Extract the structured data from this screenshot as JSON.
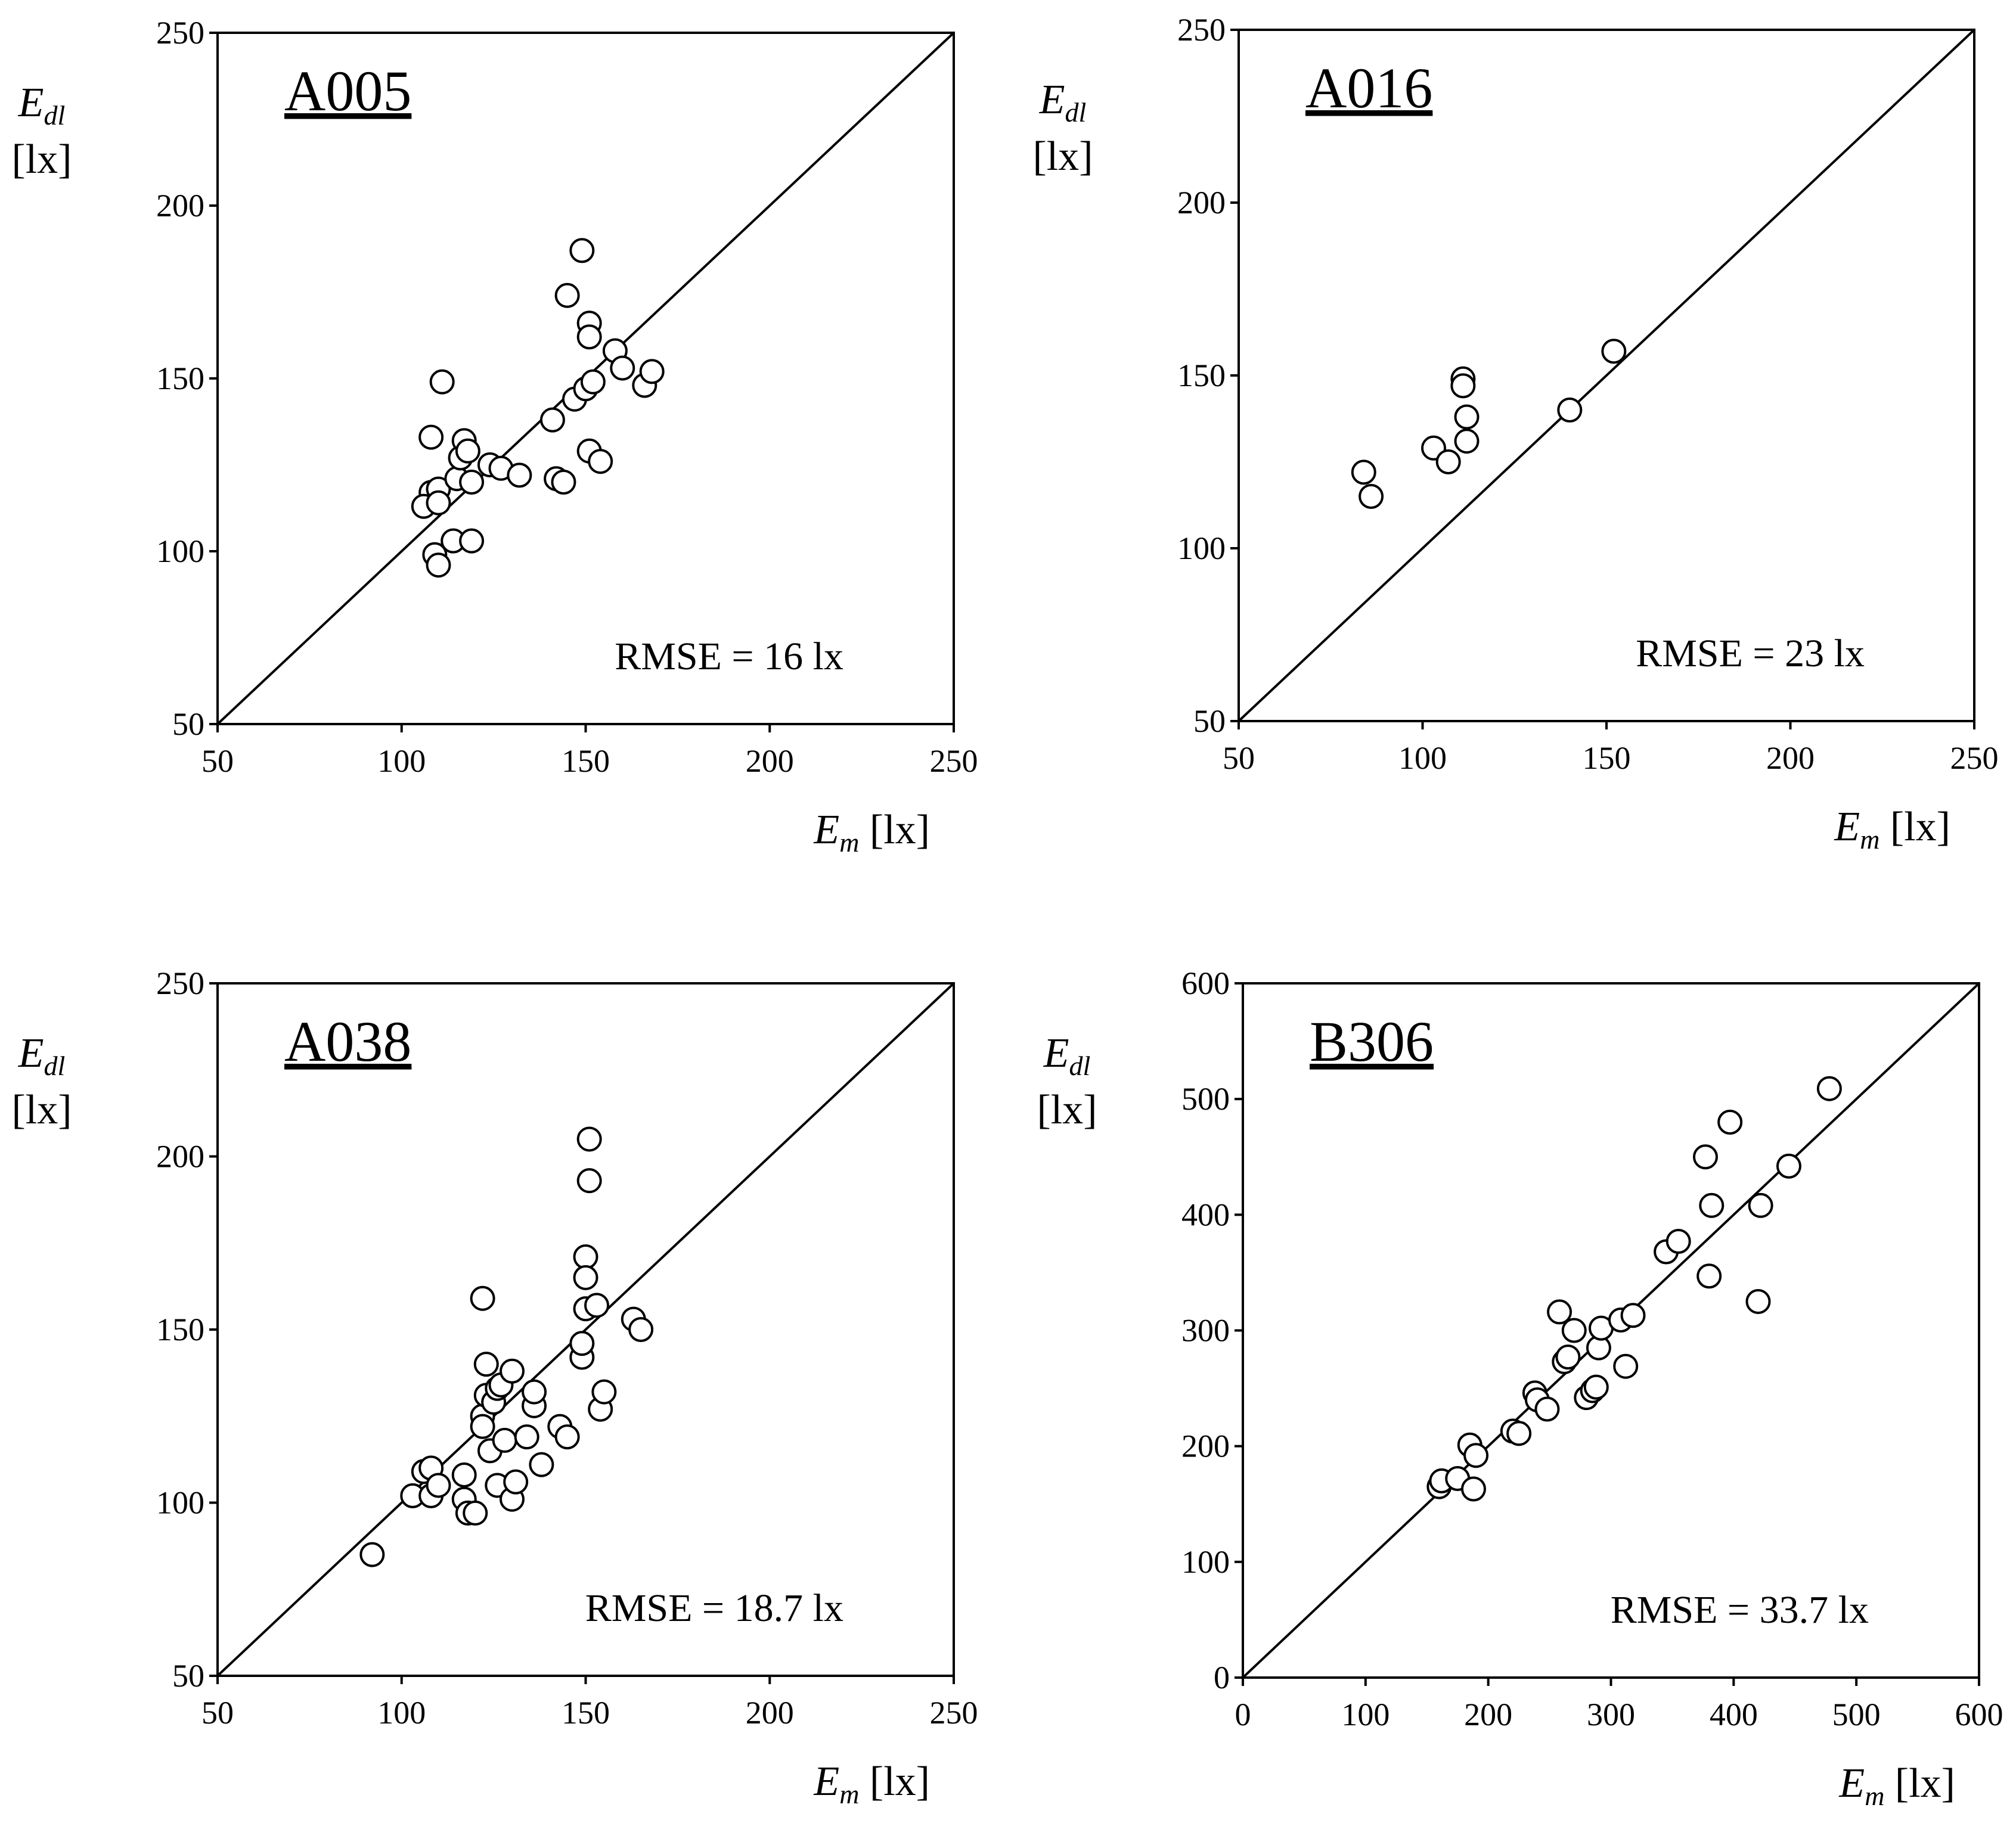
{
  "chart_data": [
    {
      "type": "scatter",
      "title": "A005",
      "annotation": "RMSE = 16 lx",
      "xlabel": {
        "main": "E",
        "sub": "m",
        "unit": "[lx]"
      },
      "ylabel": {
        "main": "E",
        "sub": "dl",
        "unit": "[lx]"
      },
      "xlim": [
        50,
        250
      ],
      "ylim": [
        50,
        250
      ],
      "xticks": [
        "50",
        "100",
        "150",
        "200",
        "250"
      ],
      "yticks": [
        "50",
        "100",
        "150",
        "200",
        "250"
      ],
      "reference_line": "y = x",
      "points": [
        [
          108,
          117
        ],
        [
          110,
          118
        ],
        [
          106,
          113
        ],
        [
          108,
          133
        ],
        [
          111,
          149
        ],
        [
          110,
          114
        ],
        [
          109,
          99
        ],
        [
          110,
          96
        ],
        [
          114,
          103
        ],
        [
          119,
          103
        ],
        [
          115,
          121
        ],
        [
          116,
          127
        ],
        [
          117,
          132
        ],
        [
          118,
          129
        ],
        [
          119,
          120
        ],
        [
          124,
          125
        ],
        [
          127,
          124
        ],
        [
          132,
          122
        ],
        [
          141,
          138
        ],
        [
          142,
          121
        ],
        [
          144,
          120
        ],
        [
          145,
          174
        ],
        [
          147,
          144
        ],
        [
          149,
          187
        ],
        [
          151,
          166
        ],
        [
          151,
          162
        ],
        [
          150,
          147
        ],
        [
          152,
          149
        ],
        [
          151,
          129
        ],
        [
          154,
          126
        ],
        [
          158,
          158
        ],
        [
          160,
          153
        ],
        [
          166,
          148
        ],
        [
          168,
          152
        ]
      ]
    },
    {
      "type": "scatter",
      "title": "A016",
      "annotation": "RMSE = 23 lx",
      "xlabel": {
        "main": "E",
        "sub": "m",
        "unit": "[lx]"
      },
      "ylabel": {
        "main": "E",
        "sub": "dl",
        "unit": "[lx]"
      },
      "xlim": [
        50,
        250
      ],
      "ylim": [
        50,
        250
      ],
      "xticks": [
        "50",
        "100",
        "150",
        "200",
        "250"
      ],
      "yticks": [
        "50",
        "100",
        "150",
        "200",
        "250"
      ],
      "reference_line": "y = x",
      "points": [
        [
          84,
          122
        ],
        [
          86,
          115
        ],
        [
          103,
          129
        ],
        [
          107,
          125
        ],
        [
          111,
          149
        ],
        [
          111,
          147
        ],
        [
          112,
          138
        ],
        [
          112,
          131
        ],
        [
          140,
          140
        ],
        [
          152,
          157
        ]
      ]
    },
    {
      "type": "scatter",
      "title": "A038",
      "annotation": "RMSE = 18.7 lx",
      "xlabel": {
        "main": "E",
        "sub": "m",
        "unit": "[lx]"
      },
      "ylabel": {
        "main": "E",
        "sub": "dl",
        "unit": "[lx]"
      },
      "xlim": [
        50,
        250
      ],
      "ylim": [
        50,
        250
      ],
      "xticks": [
        "50",
        "100",
        "150",
        "200",
        "250"
      ],
      "yticks": [
        "50",
        "100",
        "150",
        "200",
        "250"
      ],
      "reference_line": "y = x",
      "points": [
        [
          92,
          85
        ],
        [
          103,
          102
        ],
        [
          106,
          109
        ],
        [
          108,
          102
        ],
        [
          108,
          110
        ],
        [
          110,
          105
        ],
        [
          117,
          108
        ],
        [
          117,
          101
        ],
        [
          118,
          97
        ],
        [
          120,
          97
        ],
        [
          122,
          159
        ],
        [
          123,
          140
        ],
        [
          122,
          125
        ],
        [
          122,
          122
        ],
        [
          123,
          131
        ],
        [
          124,
          115
        ],
        [
          125,
          129
        ],
        [
          126,
          133
        ],
        [
          126,
          105
        ],
        [
          127,
          134
        ],
        [
          128,
          118
        ],
        [
          130,
          138
        ],
        [
          130,
          101
        ],
        [
          131,
          106
        ],
        [
          134,
          119
        ],
        [
          136,
          128
        ],
        [
          136,
          132
        ],
        [
          138,
          111
        ],
        [
          143,
          122
        ],
        [
          145,
          119
        ],
        [
          149,
          142
        ],
        [
          149,
          146
        ],
        [
          150,
          171
        ],
        [
          150,
          165
        ],
        [
          150,
          156
        ],
        [
          151,
          205
        ],
        [
          151,
          193
        ],
        [
          153,
          157
        ],
        [
          154,
          127
        ],
        [
          155,
          132
        ],
        [
          163,
          153
        ],
        [
          165,
          150
        ]
      ]
    },
    {
      "type": "scatter",
      "title": "B306",
      "annotation": "RMSE = 33.7 lx",
      "xlabel": {
        "main": "E",
        "sub": "m",
        "unit": "[lx]"
      },
      "ylabel": {
        "main": "E",
        "sub": "dl",
        "unit": "[lx]"
      },
      "xlim": [
        0,
        600
      ],
      "ylim": [
        0,
        600
      ],
      "xticks": [
        "0",
        "100",
        "200",
        "300",
        "400",
        "500",
        "600"
      ],
      "yticks": [
        "0",
        "100",
        "200",
        "300",
        "400",
        "500",
        "600"
      ],
      "reference_line": "y = x",
      "points": [
        [
          160,
          165
        ],
        [
          162,
          170
        ],
        [
          175,
          172
        ],
        [
          185,
          201
        ],
        [
          188,
          163
        ],
        [
          190,
          192
        ],
        [
          220,
          213
        ],
        [
          225,
          211
        ],
        [
          238,
          246
        ],
        [
          240,
          240
        ],
        [
          248,
          232
        ],
        [
          258,
          316
        ],
        [
          262,
          273
        ],
        [
          265,
          277
        ],
        [
          270,
          300
        ],
        [
          280,
          242
        ],
        [
          285,
          248
        ],
        [
          288,
          251
        ],
        [
          290,
          285
        ],
        [
          292,
          302
        ],
        [
          308,
          309
        ],
        [
          312,
          269
        ],
        [
          318,
          313
        ],
        [
          345,
          368
        ],
        [
          355,
          377
        ],
        [
          377,
          450
        ],
        [
          380,
          347
        ],
        [
          382,
          408
        ],
        [
          397,
          480
        ],
        [
          420,
          325
        ],
        [
          422,
          408
        ],
        [
          445,
          442
        ],
        [
          478,
          509
        ]
      ]
    }
  ]
}
